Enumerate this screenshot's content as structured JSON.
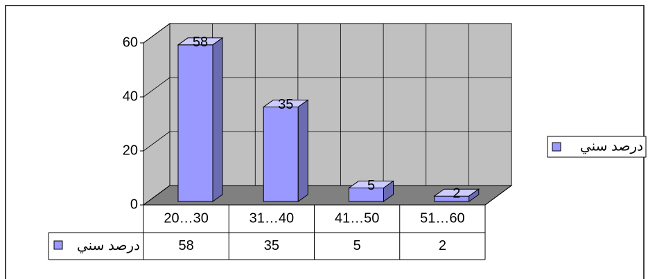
{
  "chart_data": {
    "type": "bar3d",
    "categories": [
      "20…30",
      "31…40",
      "41…50",
      "51…60"
    ],
    "series": [
      {
        "name": "درصد سني",
        "color": "#9999ff",
        "values": [
          58,
          35,
          5,
          2
        ]
      }
    ],
    "ylim": [
      0,
      60
    ],
    "yticks": [
      0,
      20,
      40,
      60
    ],
    "grid": true,
    "legend": "right",
    "data_table": true
  }
}
